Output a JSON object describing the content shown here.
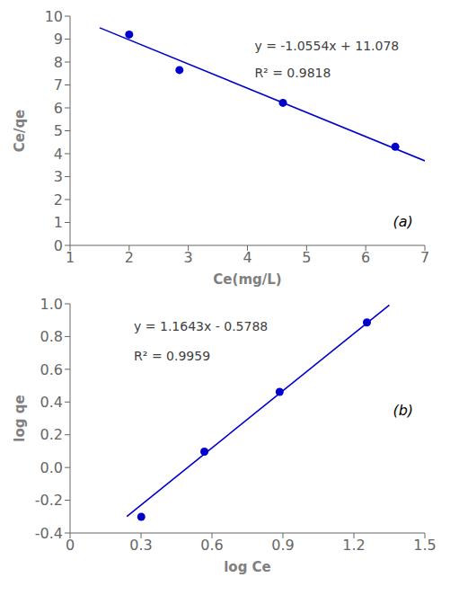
{
  "chart_data": [
    {
      "type": "scatter",
      "xlabel": "Ce(mg/L)",
      "ylabel": "Ce/qe",
      "xlim": [
        1,
        7
      ],
      "ylim": [
        0,
        10
      ],
      "xticks": [
        1,
        2,
        3,
        4,
        5,
        6,
        7
      ],
      "yticks": [
        0,
        1,
        2,
        3,
        4,
        5,
        6,
        7,
        8,
        9,
        10
      ],
      "grid": false,
      "series": [
        {
          "type": "line",
          "color": "#0000CC",
          "line_style": "solid",
          "x": [
            1.5,
            7.0
          ],
          "values": [
            9.4949,
            3.6902
          ]
        },
        {
          "type": "scatter",
          "color": "#0000CC",
          "marker": "circle",
          "x": [
            2.0,
            2.85,
            4.6,
            6.5
          ],
          "values": [
            9.2,
            7.65,
            6.22,
            4.3
          ]
        }
      ],
      "annotations": [
        {
          "text": "y = -1.0554x + 11.078",
          "color": "#404040"
        },
        {
          "text": "R² = 0.9818",
          "color": "#404040"
        },
        {
          "text": "(a)",
          "color": "#000000"
        }
      ]
    },
    {
      "type": "scatter",
      "xlabel": "log Ce",
      "ylabel": "log qe",
      "xlim": [
        0,
        1.5
      ],
      "ylim": [
        -0.4,
        1.0
      ],
      "xticks": [
        0,
        0.3,
        0.6,
        0.9,
        1.2,
        1.5
      ],
      "yticks": [
        -0.4,
        -0.2,
        {
          "value": 0,
          "label": "0.0"
        },
        0.2,
        0.4,
        0.6,
        0.8,
        {
          "value": 1,
          "label": "1.0"
        }
      ],
      "grid": false,
      "series": [
        {
          "type": "line",
          "color": "#0000CC",
          "line_style": "solid",
          "x": [
            0.24,
            1.35
          ],
          "values": [
            -0.299368,
            0.993005
          ]
        },
        {
          "type": "scatter",
          "color": "#0000CC",
          "marker": "circle",
          "x": [
            0.301,
            0.568,
            0.886,
            1.255
          ],
          "values": [
            -0.301,
            0.097,
            0.462,
            0.886
          ]
        }
      ],
      "annotations": [
        {
          "text": "y = 1.1643x - 0.5788",
          "color": "#404040"
        },
        {
          "text": "R² = 0.9959",
          "color": "#404040"
        },
        {
          "text": "(b)",
          "color": "#000000"
        }
      ]
    }
  ]
}
